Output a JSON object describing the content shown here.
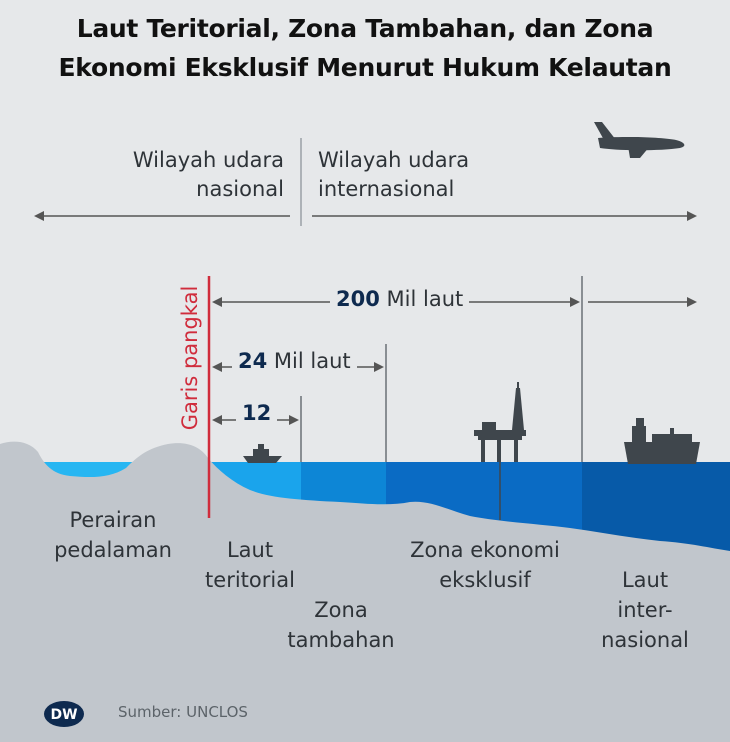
{
  "title_line1": "Laut Teritorial, Zona Tambahan, dan Zona",
  "title_line2": "Ekonomi Eksklusif Menurut Hukum Kelautan",
  "airspace": {
    "national_line1": "Wilayah udara",
    "national_line2": "nasional",
    "international_line1": "Wilayah udara",
    "international_line2": "internasional"
  },
  "baseline_label": "Garis pangkal",
  "distances": {
    "d200_num": "200",
    "d200_unit": "Mil laut",
    "d24_num": "24",
    "d24_unit": "Mil laut",
    "d12_num": "12"
  },
  "zones": {
    "inland_line1": "Perairan",
    "inland_line2": "pedalaman",
    "territorial_line1": "Laut",
    "territorial_line2": "teritorial",
    "contiguous_line1": "Zona",
    "contiguous_line2": "tambahan",
    "eez_line1": "Zona ekonomi",
    "eez_line2": "eksklusif",
    "high_seas_line1": "Laut",
    "high_seas_line2": "inter-",
    "high_seas_line3": "nasional"
  },
  "source": "Sumber: UNCLOS",
  "logo_text": "DW",
  "icons": [
    "airplane-icon",
    "boat-icon",
    "oil-rig-icon",
    "cargo-ship-icon",
    "dw-logo"
  ],
  "colors": {
    "background": "#e6e8ea",
    "land": "#c1c6cc",
    "inland_water": "#27b6f2",
    "territorial_water": "#1aa4ec",
    "contiguous_water": "#0d86d6",
    "eez_water": "#0a6bc4",
    "high_seas_water": "#075aa8",
    "baseline": "#d02c3c",
    "text": "#2e3338",
    "emphasis": "#0e2a4f"
  }
}
